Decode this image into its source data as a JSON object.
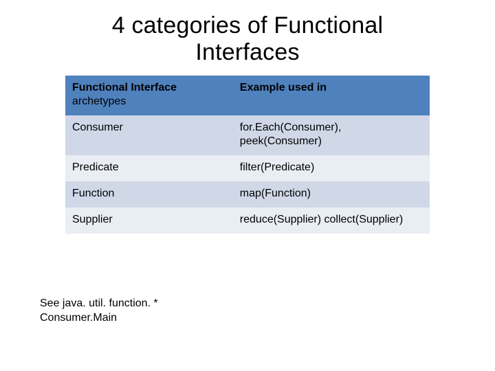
{
  "title_line1": "4 categories of Functional",
  "title_line2": "Interfaces",
  "table": {
    "header": {
      "col1_strong": "Functional Interface",
      "col1_sub": "archetypes",
      "col2": "Example used in"
    },
    "rows": [
      {
        "c1": "Consumer",
        "c2": "for.Each(Consumer), peek(Consumer)"
      },
      {
        "c1": "Predicate",
        "c2": "filter(Predicate)"
      },
      {
        "c1": "Function",
        "c2": "map(Function)"
      },
      {
        "c1": "Supplier",
        "c2": "reduce(Supplier) collect(Supplier)"
      }
    ],
    "header_bg": "#4f81bd",
    "row_odd_bg": "#d0d8e8",
    "row_even_bg": "#e9edf4",
    "text_color": "#000000",
    "font_size_pt": 12
  },
  "footnote": {
    "line1": "See java. util. function. *",
    "line2": "Consumer.Main"
  }
}
